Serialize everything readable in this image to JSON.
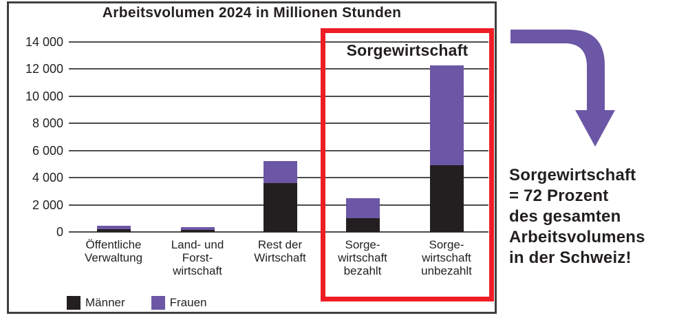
{
  "title": "Arbeitsvolumen 2024 in Millionen Stunden",
  "chart_data": {
    "type": "bar",
    "stacked": true,
    "title": "Arbeitsvolumen 2024 in Millionen Stunden",
    "unit": "Millionen Stunden",
    "categories": [
      "Öffentliche Verwaltung",
      "Land- und Forstwirtschaft",
      "Rest der Wirtschaft",
      "Sorgewirtschaft bezahlt",
      "Sorgewirtschaft unbezahlt"
    ],
    "category_label_lines": [
      [
        "Öffentliche",
        "Verwaltung"
      ],
      [
        "Land- und",
        "Forst-",
        "wirtschaft"
      ],
      [
        "Rest der",
        "Wirtschaft"
      ],
      [
        "Sorge-",
        "wirtschaft",
        "bezahlt"
      ],
      [
        "Sorge-",
        "wirtschaft",
        "unbezahlt"
      ]
    ],
    "series": [
      {
        "name": "Männer",
        "color": "#231f20",
        "values": [
          200,
          150,
          3600,
          1000,
          4900
        ]
      },
      {
        "name": "Frauen",
        "color": "#6c57a6",
        "values": [
          250,
          200,
          1600,
          1500,
          7400
        ]
      }
    ],
    "ylim": [
      0,
      14000
    ],
    "ytick_values": [
      0,
      2000,
      4000,
      6000,
      8000,
      10000,
      12000,
      14000
    ],
    "ytick_labels": [
      "0",
      "2 000",
      "4 000",
      "6 000",
      "8 000",
      "10 000",
      "12 000",
      "14 000"
    ],
    "grid": true,
    "legend_position": "bottom-left"
  },
  "highlight_box": {
    "label": "Sorgewirtschaft",
    "color": "#ee1c25",
    "covers": [
      "Sorgewirtschaft bezahlt",
      "Sorgewirtschaft unbezahlt"
    ]
  },
  "legend": [
    {
      "label": "Männer",
      "color": "#231f20"
    },
    {
      "label": "Frauen",
      "color": "#6c57a6"
    }
  ],
  "annotation": {
    "arrow_color": "#6c57a6",
    "lines": [
      "Sorgewirtschaft",
      "= 72 Prozent",
      "des gesamten",
      "Arbeitsvolumens",
      "in der Schweiz!"
    ]
  }
}
